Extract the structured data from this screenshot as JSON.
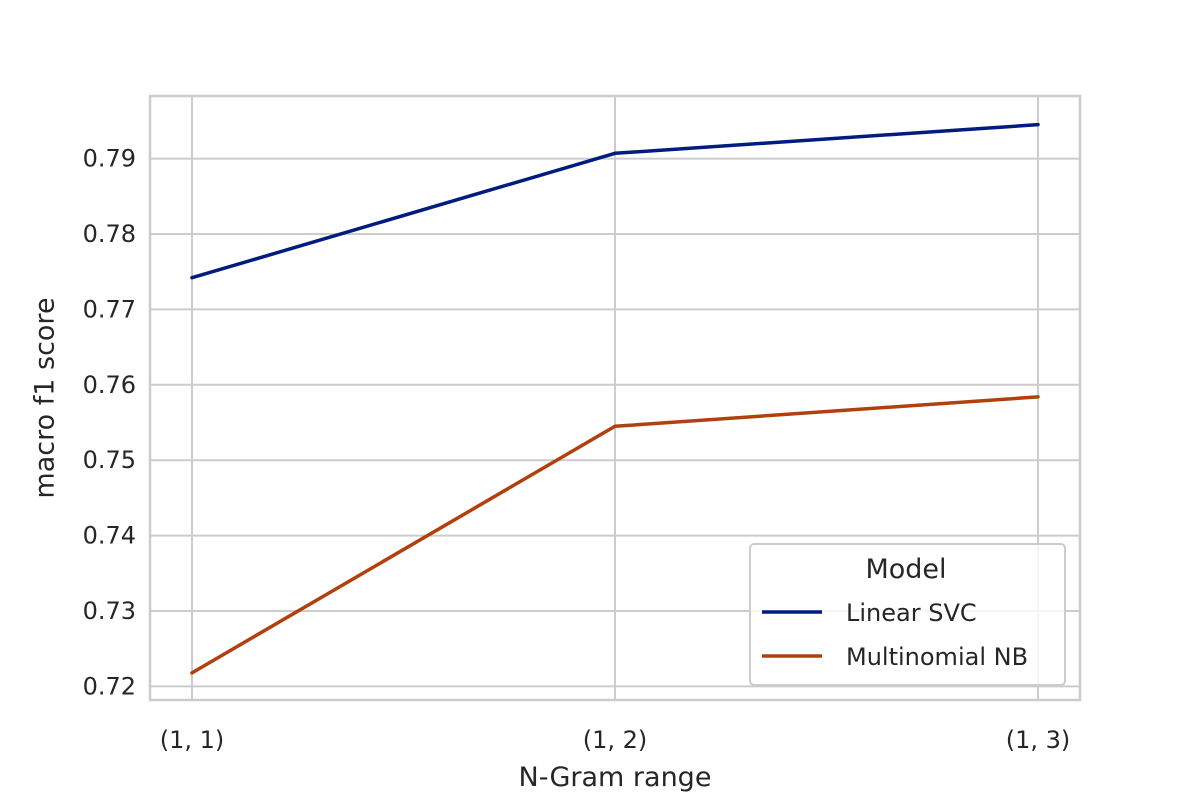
{
  "chart_data": {
    "type": "line",
    "title": "",
    "xlabel": "N-Gram range",
    "ylabel": "macro f1 score",
    "categories": [
      "(1, 1)",
      "(1, 2)",
      "(1, 3)"
    ],
    "ylim": [
      0.7182,
      0.7983
    ],
    "yticks": [
      0.72,
      0.73,
      0.74,
      0.75,
      0.76,
      0.77,
      0.78,
      0.79
    ],
    "ytick_labels": [
      "0.72",
      "0.73",
      "0.74",
      "0.75",
      "0.76",
      "0.77",
      "0.78",
      "0.79"
    ],
    "grid": true,
    "legend": {
      "title": "Model",
      "placement": "lower-right"
    },
    "series": [
      {
        "name": "Linear SVC",
        "color": "#001c7f",
        "values": [
          0.7742,
          0.7907,
          0.7945
        ]
      },
      {
        "name": "Multinomial NB",
        "color": "#b1400d",
        "values": [
          0.7218,
          0.7545,
          0.7584
        ]
      }
    ]
  }
}
